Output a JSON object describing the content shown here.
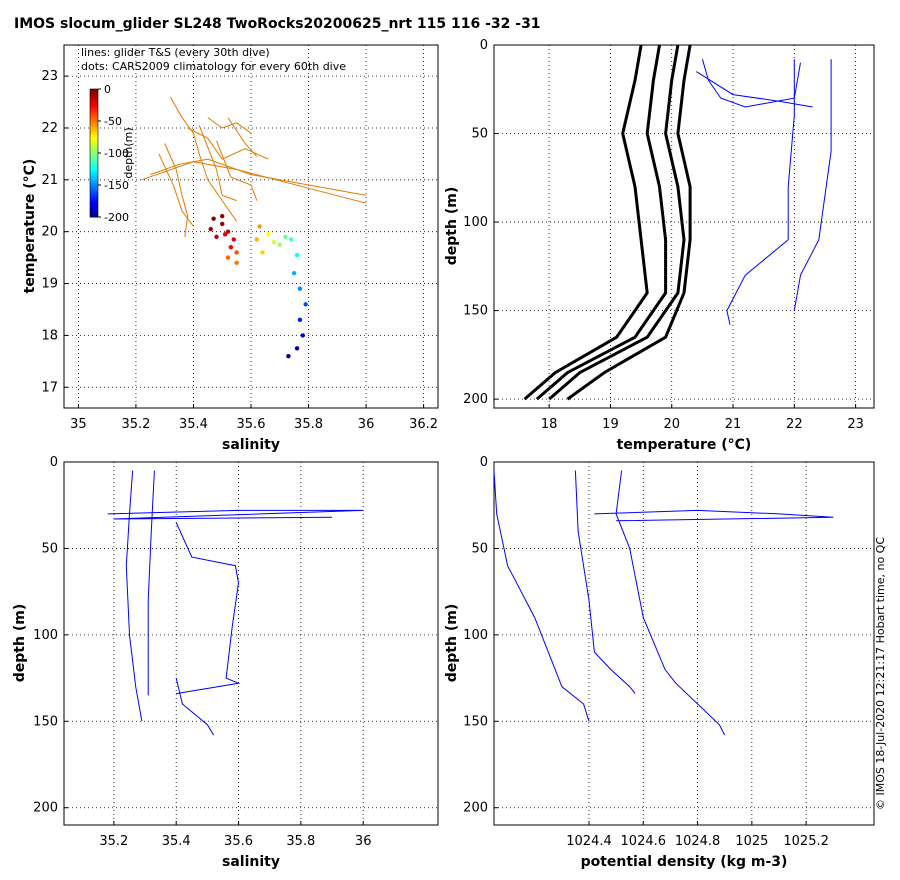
{
  "title": "IMOS slocum_glider SL248 TwoRocks20200625_nrt 115  116  -32  -31",
  "footer": "© IMOS 18-Jul-2020 12:21:17 Hobart time, no QC",
  "colors": {
    "glider": "#0000ff",
    "glider_ts": "#e07b00",
    "climatology": "#000000"
  },
  "chart_data": [
    {
      "id": "ts",
      "type": "scatter",
      "xlabel": "salinity",
      "ylabel": "temperature (°C)",
      "xlim": [
        34.95,
        36.25
      ],
      "ylim": [
        16.6,
        23.6
      ],
      "xticks": [
        35,
        35.2,
        35.4,
        35.6,
        35.8,
        36,
        36.2
      ],
      "xtick_labels": [
        "35",
        "35.2",
        "35.4",
        "35.6",
        "35.8",
        "36",
        "36.2"
      ],
      "yticks": [
        17,
        18,
        19,
        20,
        21,
        22,
        23
      ],
      "ytick_labels": [
        "17",
        "18",
        "19",
        "20",
        "21",
        "22",
        "23"
      ],
      "grid": true,
      "legend_lines": [
        "lines: glider T&S (every 30th dive)",
        "dots: CARS2009 climatology for every 60th dive"
      ],
      "colorbar": {
        "label": "depth(m)",
        "ticks": [
          0,
          -50,
          -100,
          -150,
          -200
        ],
        "tick_labels": [
          "0",
          "-50",
          "-100",
          "-150",
          "-200"
        ],
        "placement": "upper-left"
      },
      "series": [
        {
          "values": [
            [
              35.25,
              21.1
            ],
            [
              35.35,
              21.3
            ],
            [
              35.45,
              21.4
            ],
            [
              35.6,
              21.1
            ],
            [
              36.0,
              20.7
            ]
          ]
        },
        {
          "values": [
            [
              35.22,
              21.0
            ],
            [
              35.4,
              21.35
            ],
            [
              35.55,
              21.2
            ],
            [
              36.0,
              20.55
            ]
          ]
        },
        {
          "values": [
            [
              35.32,
              22.6
            ],
            [
              35.36,
              22.2
            ],
            [
              35.4,
              21.9
            ],
            [
              35.42,
              21.5
            ],
            [
              35.45,
              21.0
            ],
            [
              35.5,
              20.6
            ],
            [
              35.55,
              20.2
            ]
          ]
        },
        {
          "values": [
            [
              35.38,
              22.0
            ],
            [
              35.45,
              21.8
            ],
            [
              35.5,
              21.4
            ],
            [
              35.58,
              21.6
            ],
            [
              35.66,
              21.4
            ]
          ]
        },
        {
          "values": [
            [
              35.52,
              22.2
            ],
            [
              35.55,
              21.95
            ],
            [
              35.58,
              21.7
            ],
            [
              35.62,
              21.45
            ]
          ]
        },
        {
          "values": [
            [
              35.3,
              21.7
            ],
            [
              35.34,
              21.2
            ],
            [
              35.36,
              20.7
            ],
            [
              35.38,
              20.3
            ],
            [
              35.37,
              19.9
            ]
          ]
        },
        {
          "values": [
            [
              35.42,
              22.05
            ],
            [
              35.48,
              21.2
            ],
            [
              35.5,
              20.7
            ],
            [
              35.55,
              20.6
            ]
          ]
        },
        {
          "values": [
            [
              35.28,
              21.5
            ],
            [
              35.33,
              20.9
            ],
            [
              35.36,
              20.4
            ],
            [
              35.4,
              20.1
            ]
          ]
        },
        {
          "values": [
            [
              35.48,
              21.75
            ],
            [
              35.53,
              21.05
            ],
            [
              35.6,
              20.9
            ],
            [
              35.62,
              20.6
            ]
          ]
        },
        {
          "values": [
            [
              35.45,
              22.2
            ],
            [
              35.5,
              22.0
            ],
            [
              35.55,
              22.1
            ],
            [
              35.6,
              21.9
            ]
          ]
        }
      ],
      "points": [
        {
          "s": 35.47,
          "t": 20.25,
          "d": 2
        },
        {
          "s": 35.5,
          "t": 20.15,
          "d": 5
        },
        {
          "s": 35.52,
          "t": 20.0,
          "d": 10
        },
        {
          "s": 35.48,
          "t": 19.9,
          "d": 12
        },
        {
          "s": 35.54,
          "t": 19.85,
          "d": 18
        },
        {
          "s": 35.5,
          "t": 20.3,
          "d": 3
        },
        {
          "s": 35.53,
          "t": 19.7,
          "d": 25
        },
        {
          "s": 35.55,
          "t": 19.6,
          "d": 40
        },
        {
          "s": 35.52,
          "t": 19.5,
          "d": 45
        },
        {
          "s": 35.46,
          "t": 20.05,
          "d": 8
        },
        {
          "s": 35.51,
          "t": 19.95,
          "d": 20
        },
        {
          "s": 35.55,
          "t": 19.4,
          "d": 48
        },
        {
          "s": 35.63,
          "t": 20.1,
          "d": 55
        },
        {
          "s": 35.62,
          "t": 19.85,
          "d": 60
        },
        {
          "s": 35.64,
          "t": 19.6,
          "d": 65
        },
        {
          "s": 35.66,
          "t": 19.95,
          "d": 75
        },
        {
          "s": 35.68,
          "t": 19.8,
          "d": 85
        },
        {
          "s": 35.7,
          "t": 19.75,
          "d": 95
        },
        {
          "s": 35.72,
          "t": 19.9,
          "d": 105
        },
        {
          "s": 35.74,
          "t": 19.85,
          "d": 112
        },
        {
          "s": 35.76,
          "t": 19.55,
          "d": 125
        },
        {
          "s": 35.75,
          "t": 19.2,
          "d": 140
        },
        {
          "s": 35.77,
          "t": 18.9,
          "d": 148
        },
        {
          "s": 35.79,
          "t": 18.6,
          "d": 160
        },
        {
          "s": 35.77,
          "t": 18.3,
          "d": 170
        },
        {
          "s": 35.78,
          "t": 18.0,
          "d": 182
        },
        {
          "s": 35.76,
          "t": 17.75,
          "d": 192
        },
        {
          "s": 35.73,
          "t": 17.6,
          "d": 200
        }
      ]
    },
    {
      "id": "temp",
      "type": "line",
      "xlabel": "temperature (°C)",
      "ylabel": "depth (m)",
      "xlim": [
        17.1,
        23.3
      ],
      "ylim": [
        0,
        205
      ],
      "y_reversed": true,
      "xticks": [
        18,
        19,
        20,
        21,
        22,
        23
      ],
      "xtick_labels": [
        "18",
        "19",
        "20",
        "21",
        "22",
        "23"
      ],
      "yticks": [
        0,
        50,
        100,
        150,
        200
      ],
      "ytick_labels": [
        "0",
        "50",
        "100",
        "150",
        "200"
      ],
      "grid": true,
      "climatology": [
        [
          [
            19.5,
            0
          ],
          [
            19.4,
            20
          ],
          [
            19.2,
            50
          ],
          [
            19.4,
            80
          ],
          [
            19.5,
            110
          ],
          [
            19.6,
            140
          ],
          [
            19.1,
            165
          ],
          [
            18.1,
            185
          ],
          [
            17.6,
            200
          ]
        ],
        [
          [
            19.8,
            0
          ],
          [
            19.7,
            20
          ],
          [
            19.6,
            50
          ],
          [
            19.8,
            80
          ],
          [
            19.9,
            110
          ],
          [
            19.9,
            140
          ],
          [
            19.4,
            165
          ],
          [
            18.3,
            185
          ],
          [
            17.8,
            200
          ]
        ],
        [
          [
            20.1,
            0
          ],
          [
            20.0,
            20
          ],
          [
            19.9,
            50
          ],
          [
            20.1,
            80
          ],
          [
            20.2,
            110
          ],
          [
            20.1,
            140
          ],
          [
            19.6,
            165
          ],
          [
            18.5,
            185
          ],
          [
            18.0,
            200
          ]
        ],
        [
          [
            20.3,
            0
          ],
          [
            20.2,
            20
          ],
          [
            20.1,
            50
          ],
          [
            20.3,
            80
          ],
          [
            20.3,
            110
          ],
          [
            20.2,
            140
          ],
          [
            19.9,
            165
          ],
          [
            18.9,
            185
          ],
          [
            18.3,
            200
          ]
        ]
      ],
      "glider": [
        [
          [
            20.5,
            8
          ],
          [
            20.6,
            20
          ],
          [
            20.8,
            30
          ],
          [
            21.2,
            35
          ],
          [
            22.0,
            30
          ],
          [
            22.1,
            10
          ]
        ],
        [
          [
            22.0,
            8
          ],
          [
            22.0,
            40
          ],
          [
            21.9,
            80
          ],
          [
            21.9,
            110
          ],
          [
            21.2,
            130
          ],
          [
            20.9,
            150
          ],
          [
            20.95,
            158
          ]
        ],
        [
          [
            22.6,
            8
          ],
          [
            22.6,
            60
          ],
          [
            22.4,
            110
          ],
          [
            22.1,
            130
          ],
          [
            22.0,
            150
          ]
        ],
        [
          [
            20.4,
            15
          ],
          [
            21.0,
            28
          ],
          [
            21.8,
            32
          ],
          [
            22.3,
            35
          ]
        ]
      ]
    },
    {
      "id": "sal",
      "type": "line",
      "xlabel": "salinity",
      "ylabel": "depth (m)",
      "xlim": [
        35.04,
        36.24
      ],
      "ylim": [
        0,
        210
      ],
      "y_reversed": true,
      "xticks": [
        35.2,
        35.4,
        35.6,
        35.8,
        36
      ],
      "xtick_labels": [
        "35.2",
        "35.4",
        "35.6",
        "35.8",
        "36"
      ],
      "yticks": [
        0,
        50,
        100,
        150,
        200
      ],
      "ytick_labels": [
        "0",
        "50",
        "100",
        "150",
        "200"
      ],
      "grid": true,
      "glider": [
        [
          [
            35.26,
            5
          ],
          [
            35.25,
            30
          ],
          [
            35.24,
            60
          ],
          [
            35.25,
            100
          ],
          [
            35.27,
            130
          ],
          [
            35.29,
            150
          ]
        ],
        [
          [
            35.33,
            5
          ],
          [
            35.32,
            40
          ],
          [
            35.31,
            80
          ],
          [
            35.31,
            120
          ],
          [
            35.31,
            135
          ]
        ],
        [
          [
            35.4,
            35
          ],
          [
            35.45,
            55
          ],
          [
            35.59,
            60
          ],
          [
            35.6,
            70
          ],
          [
            35.58,
            95
          ],
          [
            35.56,
            125
          ],
          [
            35.6,
            128
          ],
          [
            35.4,
            134
          ]
        ],
        [
          [
            35.4,
            125
          ],
          [
            35.42,
            140
          ],
          [
            35.5,
            152
          ],
          [
            35.52,
            158
          ]
        ],
        [
          [
            35.18,
            30
          ],
          [
            35.6,
            28
          ],
          [
            36.0,
            28
          ],
          [
            35.2,
            33
          ],
          [
            35.9,
            32
          ]
        ]
      ]
    },
    {
      "id": "dens",
      "type": "line",
      "xlabel": "potential density (kg m-3)",
      "ylabel": "depth (m)",
      "xlim": [
        1024.05,
        1025.45
      ],
      "ylim": [
        0,
        210
      ],
      "y_reversed": true,
      "xticks": [
        1024.4,
        1024.6,
        1024.8,
        1025,
        1025.2
      ],
      "xtick_labels": [
        "1024.4",
        "1024.6",
        "1024.8",
        "1025",
        "1025.2"
      ],
      "yticks": [
        0,
        50,
        100,
        150,
        200
      ],
      "ytick_labels": [
        "0",
        "50",
        "100",
        "150",
        "200"
      ],
      "grid": true,
      "glider": [
        [
          [
            1024.05,
            5
          ],
          [
            1024.06,
            30
          ],
          [
            1024.1,
            60
          ],
          [
            1024.2,
            90
          ],
          [
            1024.25,
            110
          ],
          [
            1024.3,
            130
          ],
          [
            1024.38,
            140
          ],
          [
            1024.4,
            150
          ]
        ],
        [
          [
            1024.35,
            5
          ],
          [
            1024.36,
            40
          ],
          [
            1024.4,
            80
          ],
          [
            1024.42,
            110
          ],
          [
            1024.48,
            120
          ],
          [
            1024.55,
            130
          ],
          [
            1024.57,
            134
          ]
        ],
        [
          [
            1024.52,
            5
          ],
          [
            1024.5,
            30
          ],
          [
            1024.55,
            50
          ],
          [
            1024.6,
            90
          ],
          [
            1024.68,
            120
          ],
          [
            1024.72,
            128
          ],
          [
            1024.8,
            140
          ],
          [
            1024.88,
            152
          ],
          [
            1024.9,
            158
          ]
        ],
        [
          [
            1024.42,
            30
          ],
          [
            1024.8,
            28
          ],
          [
            1025.1,
            30
          ],
          [
            1025.3,
            32
          ],
          [
            1024.5,
            34
          ]
        ]
      ]
    }
  ]
}
